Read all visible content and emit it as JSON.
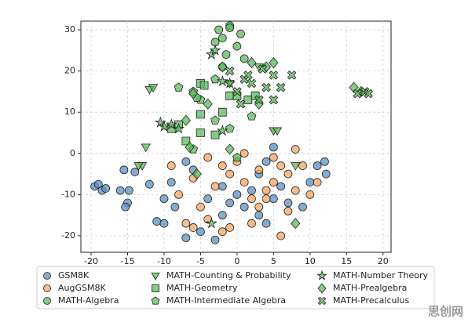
{
  "chart_data": {
    "type": "scatter",
    "xlim": [
      -21.4,
      21.1
    ],
    "ylim": [
      -24,
      32.1
    ],
    "xticks": [
      -20,
      -15,
      -10,
      -5,
      0,
      5,
      10,
      15,
      20
    ],
    "yticks": [
      -20,
      -10,
      0,
      10,
      20,
      30
    ],
    "grid": true,
    "legend": "below",
    "watermark": "思创网",
    "series": [
      {
        "name": "GSM8K",
        "color": "#5b8fc0",
        "marker": "circle",
        "x": [
          -19.5,
          -19,
          -18.5,
          -18,
          -16,
          -15.5,
          -15,
          -15.3,
          -14.8,
          -14,
          -12,
          -11,
          -10,
          -10,
          -9,
          -8.5,
          -7,
          -5,
          -3,
          -2,
          -1,
          0,
          1,
          2,
          3,
          4,
          5,
          6,
          7,
          9,
          10,
          11,
          12,
          12.2,
          5,
          -6,
          -7,
          -4,
          -2,
          3,
          4
        ],
        "y": [
          -8,
          -7.5,
          -9,
          -8.5,
          -9,
          -4,
          -12,
          -13,
          -9,
          -4.5,
          -7.5,
          -16.5,
          -17,
          -11,
          -7,
          -13,
          -20.5,
          -19,
          -21,
          -15,
          -12,
          -10,
          -13,
          -9,
          -15,
          -17,
          -11,
          -8,
          -12,
          -13,
          -7,
          -3,
          -2,
          -5,
          1.5,
          -4,
          -2,
          -11,
          -8,
          -5,
          -2
        ]
      },
      {
        "name": "AugGSM8K",
        "color": "#f5a461",
        "marker": "circle",
        "x": [
          -9,
          -8,
          -7,
          -6,
          -5,
          -4,
          -3,
          -2,
          -1,
          0,
          1,
          2,
          3,
          4,
          5,
          6,
          7,
          8,
          9,
          10,
          -4,
          -2,
          1,
          3,
          5,
          7,
          8,
          -6,
          11,
          2,
          -1,
          4,
          6
        ],
        "y": [
          -3,
          -10,
          -17,
          -6,
          -13,
          -1,
          -8,
          -3,
          -18,
          -2,
          -7,
          -11,
          -4,
          -9,
          -1,
          -20,
          -5,
          -9,
          -3,
          -10,
          -16,
          -19,
          0,
          -13,
          -7,
          -14,
          1,
          -18,
          -7,
          -17,
          -5,
          -11,
          -3
        ]
      },
      {
        "name": "MATH-Algebra",
        "color": "#5cb85c",
        "marker": "circle",
        "x": [
          -2,
          -2.5,
          -1,
          -3,
          0,
          -1.5,
          0.5,
          -2,
          1,
          -1
        ],
        "y": [
          28,
          30,
          31,
          27,
          26,
          24,
          29,
          21,
          23,
          30.5
        ]
      },
      {
        "name": "MATH-Counting & Probability",
        "color": "#5cb85c",
        "marker": "triangle",
        "x": [
          -12,
          -11.5,
          -13,
          -13.5,
          -12.5,
          5,
          5.5,
          8,
          -1,
          3
        ],
        "y": [
          15.5,
          16,
          -3,
          -3,
          1.5,
          5.5,
          5.5,
          -3,
          17,
          21
        ]
      },
      {
        "name": "MATH-Geometry",
        "color": "#5cb85c",
        "marker": "square",
        "x": [
          -9,
          -8,
          -7,
          -5,
          -4.5,
          -5,
          -3,
          -1,
          0,
          1.5,
          -2,
          -5,
          2.5
        ],
        "y": [
          6,
          7,
          3,
          17,
          16.5,
          9.5,
          4.5,
          14,
          14,
          13,
          10,
          5,
          14
        ]
      },
      {
        "name": "MATH-Intermediate Algebra",
        "color": "#5cb85c",
        "marker": "pentagon",
        "x": [
          -8,
          -5,
          -6,
          -3,
          -1,
          -5.5,
          0,
          2,
          -3,
          -6
        ],
        "y": [
          16,
          13,
          1,
          8,
          6,
          13.5,
          -1,
          9,
          18,
          15
        ]
      },
      {
        "name": "MATH-Number Theory",
        "color": "#5cb85c",
        "marker": "star",
        "x": [
          -9,
          -10,
          -10.5,
          -3.5,
          -3,
          -2,
          -1,
          -3.5,
          -2,
          -8
        ],
        "y": [
          7,
          6.5,
          7.5,
          24,
          25,
          17.5,
          17,
          -17,
          5.5,
          6
        ]
      },
      {
        "name": "MATH-Prealgebra",
        "color": "#5cb85c",
        "marker": "diamond",
        "x": [
          -6,
          -6.5,
          -5.5,
          -2,
          2,
          4,
          5,
          16,
          17,
          -4,
          -1,
          8,
          -7,
          3
        ],
        "y": [
          14.5,
          1.5,
          -5,
          21,
          22,
          21,
          22,
          16,
          15,
          12,
          1,
          -17,
          8,
          12
        ]
      },
      {
        "name": "MATH-Precalculus",
        "color": "#5cb85c",
        "marker": "x",
        "x": [
          0,
          1,
          2,
          3,
          4,
          5,
          6,
          7.5,
          16.5,
          17.5,
          18,
          -1,
          0.5,
          5,
          3.5,
          1.5
        ],
        "y": [
          15,
          18,
          17,
          13,
          16,
          19,
          16,
          19,
          14.5,
          15,
          14.5,
          20,
          12,
          13,
          20.5,
          19
        ]
      }
    ]
  }
}
